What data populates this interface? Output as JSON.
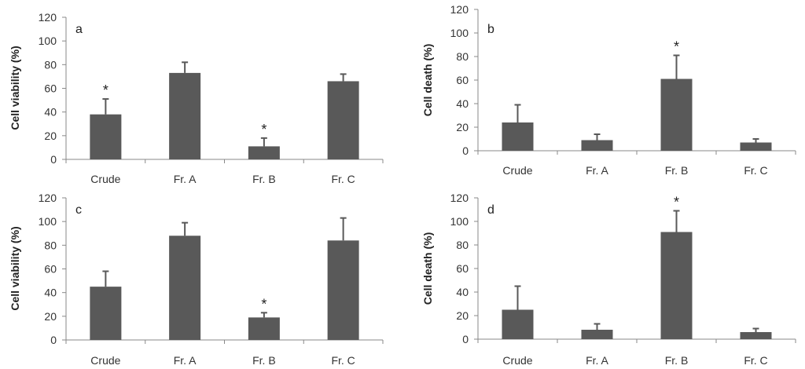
{
  "bar_color": "#595959",
  "axis_color": "#888888",
  "chart_data": [
    {
      "type": "bar",
      "panel_label": "a",
      "ylabel": "Cell viability (%)",
      "categories": [
        "Crude",
        "Fr. A",
        "Fr. B",
        "Fr. C"
      ],
      "values": [
        38,
        73,
        11,
        66
      ],
      "errors": [
        13,
        9,
        7,
        6
      ],
      "significant": [
        "*",
        "",
        "*",
        ""
      ],
      "ylim": [
        0,
        120
      ],
      "yticks": [
        "0",
        "20",
        "40",
        "60",
        "80",
        "100",
        "120"
      ]
    },
    {
      "type": "bar",
      "panel_label": "b",
      "ylabel": "Cell death (%)",
      "categories": [
        "Crude",
        "Fr. A",
        "Fr. B",
        "Fr. C"
      ],
      "values": [
        24,
        9,
        61,
        7
      ],
      "errors": [
        15,
        5,
        20,
        3
      ],
      "significant": [
        "",
        "",
        "*",
        ""
      ],
      "ylim": [
        0,
        120
      ],
      "yticks": [
        "0",
        "20",
        "40",
        "60",
        "80",
        "100",
        "120"
      ]
    },
    {
      "type": "bar",
      "panel_label": "c",
      "ylabel": "Cell viability (%)",
      "categories": [
        "Crude",
        "Fr. A",
        "Fr. B",
        "Fr. C"
      ],
      "values": [
        45,
        88,
        19,
        84
      ],
      "errors": [
        13,
        11,
        4,
        19
      ],
      "significant": [
        "",
        "",
        "*",
        ""
      ],
      "ylim": [
        0,
        120
      ],
      "yticks": [
        "0",
        "20",
        "40",
        "60",
        "80",
        "100",
        "120"
      ]
    },
    {
      "type": "bar",
      "panel_label": "d",
      "ylabel": "Cell death (%)",
      "categories": [
        "Crude",
        "Fr. A",
        "Fr. B",
        "Fr. C"
      ],
      "values": [
        25,
        8,
        91,
        6
      ],
      "errors": [
        20,
        5,
        18,
        3
      ],
      "significant": [
        "",
        "",
        "*",
        ""
      ],
      "ylim": [
        0,
        120
      ],
      "yticks": [
        "0",
        "20",
        "40",
        "60",
        "80",
        "100",
        "120"
      ]
    }
  ]
}
